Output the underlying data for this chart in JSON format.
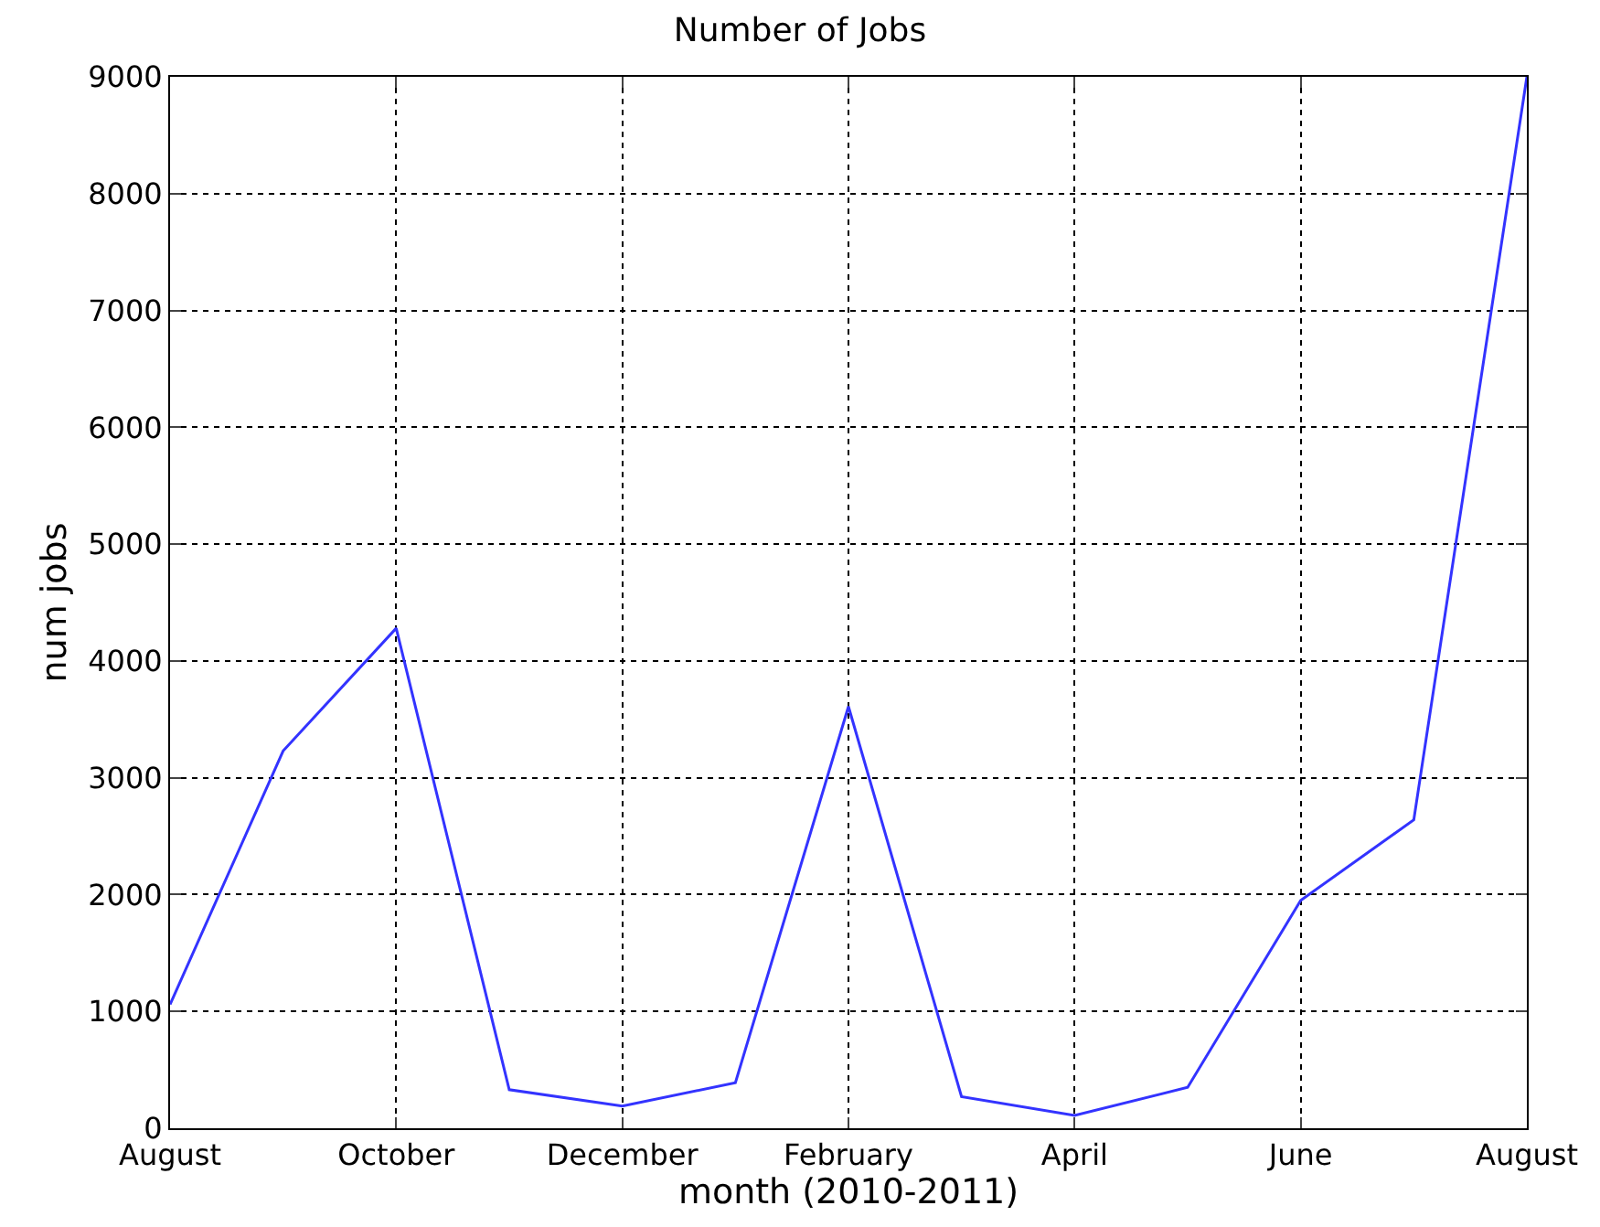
{
  "chart_data": {
    "type": "line",
    "title": "Number of Jobs",
    "xlabel": "month (2010-2011)",
    "ylabel": "num jobs",
    "categories": [
      "August",
      null,
      "October",
      null,
      "December",
      null,
      "February",
      null,
      "April",
      null,
      "June",
      null,
      "August"
    ],
    "series": [
      {
        "color": "#3333ff",
        "values": [
          1060,
          3230,
          4280,
          330,
          190,
          390,
          3610,
          270,
          110,
          350,
          1950,
          2640,
          9000
        ]
      }
    ],
    "ylim": [
      0,
      9000
    ],
    "yticks": [
      0,
      1000,
      2000,
      3000,
      4000,
      5000,
      6000,
      7000,
      8000,
      9000
    ],
    "grid": true,
    "marker": "none",
    "line_style": "solid"
  }
}
